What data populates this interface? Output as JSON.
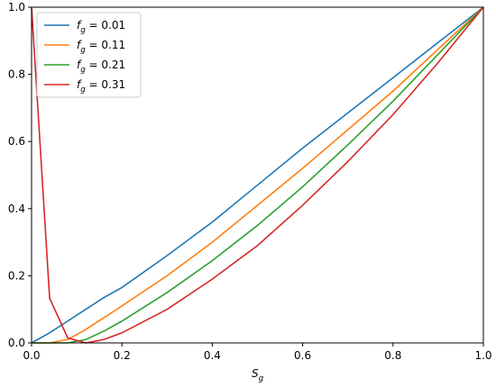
{
  "chart_data": {
    "type": "line",
    "x": [
      0,
      0.04,
      0.08,
      0.12,
      0.16,
      0.2,
      0.3,
      0.4,
      0.5,
      0.6,
      0.7,
      0.8,
      0.9,
      1.0
    ],
    "series": [
      {
        "name": "fg = 0.01",
        "color": "#1f77b4",
        "values": [
          0,
          0.03,
          0.065,
          0.1,
          0.135,
          0.165,
          0.26,
          0.36,
          0.47,
          0.58,
          0.685,
          0.79,
          0.895,
          1
        ]
      },
      {
        "name": "fg = 0.11",
        "color": "#ff7f0e",
        "values": [
          0,
          0,
          0.01,
          0.04,
          0.075,
          0.11,
          0.2,
          0.3,
          0.41,
          0.52,
          0.635,
          0.75,
          0.875,
          1
        ]
      },
      {
        "name": "fg = 0.21",
        "color": "#2ca02c",
        "values": [
          0,
          0,
          0,
          0.01,
          0.035,
          0.065,
          0.15,
          0.245,
          0.35,
          0.465,
          0.59,
          0.72,
          0.86,
          1
        ]
      },
      {
        "name": "fg = 0.31",
        "color": "#d62728",
        "values": [
          1,
          0.133,
          0.015,
          0,
          0.01,
          0.03,
          0.1,
          0.19,
          0.29,
          0.41,
          0.54,
          0.68,
          0.835,
          1
        ]
      }
    ],
    "xlabel": "Sg",
    "xlim": [
      0,
      1
    ],
    "ylim": [
      0,
      1
    ],
    "xticks": [
      {
        "value": 0,
        "label": "0.0"
      },
      {
        "value": 0.2,
        "label": "0.2"
      },
      {
        "value": 0.4,
        "label": "0.4"
      },
      {
        "value": 0.6,
        "label": "0.6"
      },
      {
        "value": 0.8,
        "label": "0.8"
      },
      {
        "value": 1,
        "label": "1.0"
      }
    ],
    "yticks": [
      {
        "value": 0,
        "label": "0.0"
      },
      {
        "value": 0.2,
        "label": "0.2"
      },
      {
        "value": 0.4,
        "label": "0.4"
      },
      {
        "value": 0.6,
        "label": "0.6"
      },
      {
        "value": 0.8,
        "label": "0.8"
      },
      {
        "value": 1,
        "label": "1.0"
      }
    ],
    "grid": false,
    "legend": "upper left"
  }
}
